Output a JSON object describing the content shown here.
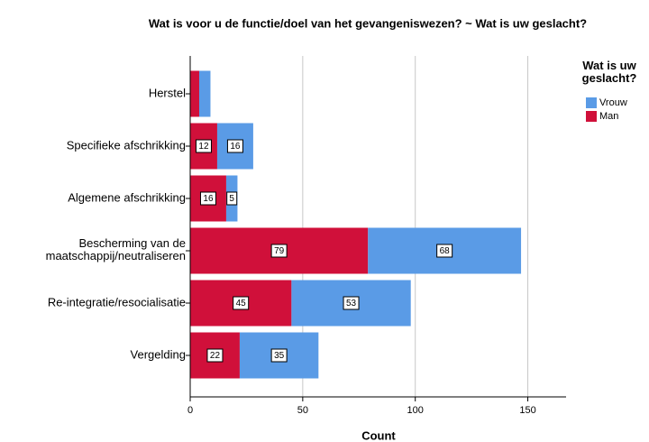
{
  "chart_data": {
    "type": "stacked_barh",
    "title": "Wat is voor u de functie/doel van het gevangeniswezen? ~ Wat is uw geslacht?",
    "xlabel": "Count",
    "categories": [
      "Herstel",
      "Specifieke afschrikking",
      "Algemene afschrikking",
      "Bescherming van de\nmaatschappij/neutraliseren",
      "Re-integratie/resocialisatie",
      "Vergelding"
    ],
    "series": [
      {
        "name": "Man",
        "color": "#d0103a",
        "values": [
          4,
          12,
          16,
          79,
          45,
          22
        ],
        "value_labels": [
          null,
          "12",
          "16",
          "79",
          "45",
          "22"
        ]
      },
      {
        "name": "Vrouw",
        "color": "#5a9be6",
        "values": [
          5,
          16,
          5,
          68,
          53,
          35
        ],
        "value_labels": [
          null,
          "16",
          "5",
          "68",
          "53",
          "35"
        ]
      }
    ],
    "legend_title": "Wat is uw\ngeslacht?",
    "legend": "right",
    "xlim": [
      0,
      167
    ],
    "xticks": [
      0,
      50,
      100,
      150
    ],
    "grid": true
  }
}
